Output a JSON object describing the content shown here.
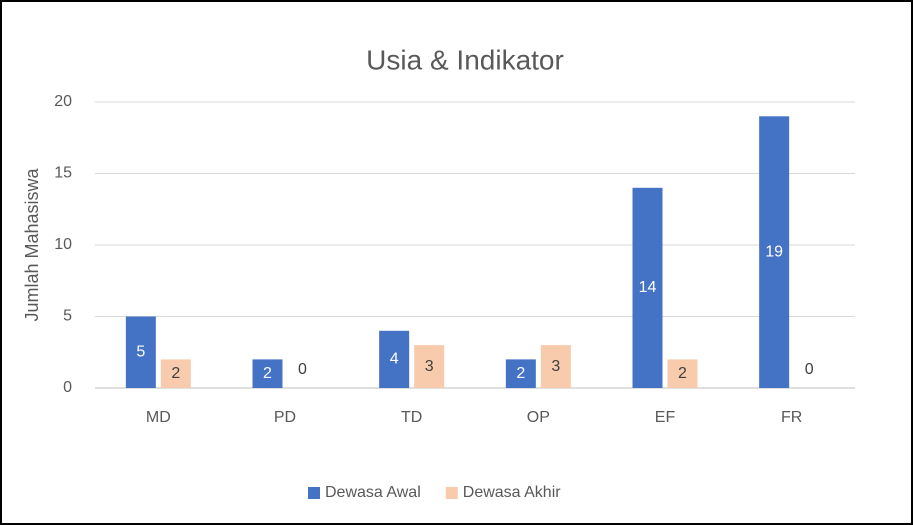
{
  "chart_data": {
    "type": "bar",
    "title": "Usia & Indikator",
    "y_label": "Jumlah Mahasiswa",
    "categories": [
      "MD",
      "PD",
      "TD",
      "OP",
      "EF",
      "FR"
    ],
    "series": [
      {
        "name": "Dewasa Awal",
        "color": "#4472c4",
        "values": [
          5,
          2,
          4,
          2,
          14,
          19
        ]
      },
      {
        "name": "Dewasa Akhir",
        "color": "#f8cbad",
        "values": [
          2,
          0,
          3,
          3,
          2,
          0
        ]
      }
    ],
    "ylim": [
      0,
      20
    ],
    "yticks": [
      0,
      5,
      10,
      15,
      20
    ],
    "grid": true,
    "legend": "bottom"
  }
}
